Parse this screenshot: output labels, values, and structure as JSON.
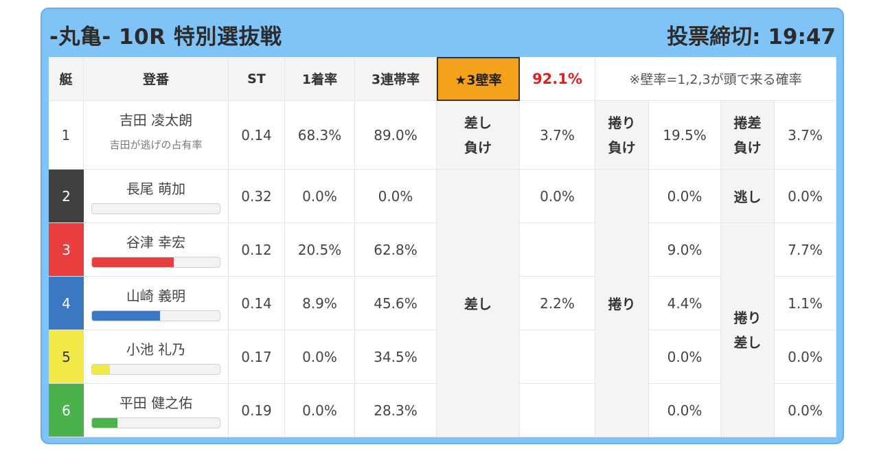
{
  "header": {
    "title": "-丸亀- 10R 特別選抜戦",
    "deadline": "投票締切: 19:47"
  },
  "columns": {
    "lane": "艇",
    "racer": "登番",
    "st": "ST",
    "first_rate": "1着率",
    "top3_rate": "3連帯率",
    "wall_label": "★3壁率",
    "wall_value": "92.1%",
    "wall_note": "※壁率=1,2,3が頭で来る確率"
  },
  "lane_colors": [
    "#ffffff",
    "#404040",
    "#e83e3e",
    "#3a78c3",
    "#f0e948",
    "#4bb24b"
  ],
  "rows": [
    {
      "lane": "1",
      "name": "吉田 凌太朗",
      "sub": "吉田が逃げの占有率",
      "st": "0.14",
      "first": "68.3%",
      "top3": "89.0%"
    },
    {
      "lane": "2",
      "name": "長尾 萌加",
      "st": "0.32",
      "first": "0.0%",
      "top3": "0.0%",
      "bar_fraction": 0
    },
    {
      "lane": "3",
      "name": "谷津 幸宏",
      "st": "0.12",
      "first": "20.5%",
      "top3": "62.8%",
      "bar_fraction": 0.64
    },
    {
      "lane": "4",
      "name": "山崎 義明",
      "st": "0.14",
      "first": "8.9%",
      "top3": "45.6%",
      "bar_fraction": 0.53
    },
    {
      "lane": "5",
      "name": "小池 礼乃",
      "st": "0.17",
      "first": "0.0%",
      "top3": "34.5%",
      "bar_fraction": 0.14
    },
    {
      "lane": "6",
      "name": "平田 健之佑",
      "st": "0.19",
      "first": "0.0%",
      "top3": "28.3%",
      "bar_fraction": 0.2
    }
  ],
  "kimarite": {
    "sashi_make": {
      "label": "差し\n負け",
      "value": "3.7%"
    },
    "makuri_make": {
      "label": "捲り\n負け",
      "value": "19.5%"
    },
    "makurizashi_make": {
      "label": "捲差\n負け",
      "value": "3.7%"
    },
    "sashi": {
      "label": "差し",
      "value2": "0.0%",
      "value4": "2.2%"
    },
    "makuri": {
      "label": "捲り",
      "values": [
        "0.0%",
        "9.0%",
        "4.4%",
        "0.0%",
        "0.0%"
      ]
    },
    "nigashi": {
      "label": "逃し",
      "value": "0.0%"
    },
    "makuri_sashi": {
      "label": "捲り\n差し",
      "values": [
        "7.7%",
        "1.1%",
        "0.0%",
        "0.0%"
      ]
    }
  }
}
